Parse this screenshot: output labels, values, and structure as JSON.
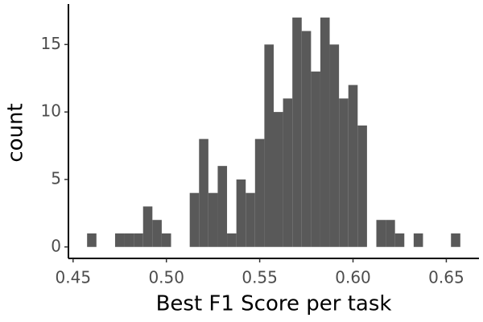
{
  "chart_data": {
    "type": "histogram",
    "x_label": "Best F1 Score per task",
    "y_label": "count",
    "bins": [
      0.4575,
      0.4625,
      0.4675,
      0.4725,
      0.4775,
      0.4825,
      0.4875,
      0.4925,
      0.4975,
      0.5025,
      0.5075,
      0.5125,
      0.5175,
      0.5225,
      0.5275,
      0.5325,
      0.5375,
      0.5425,
      0.5475,
      0.5525,
      0.5575,
      0.5625,
      0.5675,
      0.5725,
      0.5775,
      0.5825,
      0.5875,
      0.5925,
      0.5975,
      0.6025,
      0.6075,
      0.6125,
      0.6175,
      0.6225,
      0.6275,
      0.6325,
      0.6375,
      0.6425,
      0.6475,
      0.6525,
      0.6575
    ],
    "values": [
      1,
      0,
      0,
      1,
      1,
      1,
      3,
      2,
      1,
      0,
      0,
      4,
      8,
      4,
      6,
      1,
      5,
      4,
      8,
      15,
      10,
      11,
      17,
      16,
      13,
      17,
      15,
      11,
      12,
      9,
      0,
      2,
      2,
      1,
      0,
      1,
      0,
      0,
      0,
      1
    ],
    "color": "#595959",
    "xlim": [
      0.4475,
      0.6675
    ],
    "ylim": [
      -0.85,
      18
    ],
    "xticks": [
      {
        "value": 0.45,
        "label": "0.45"
      },
      {
        "value": 0.5,
        "label": "0.50"
      },
      {
        "value": 0.55,
        "label": "0.55"
      },
      {
        "value": 0.6,
        "label": "0.60"
      },
      {
        "value": 0.65,
        "label": "0.65"
      }
    ],
    "yticks": [
      0,
      5,
      10,
      15
    ],
    "grid": false
  }
}
